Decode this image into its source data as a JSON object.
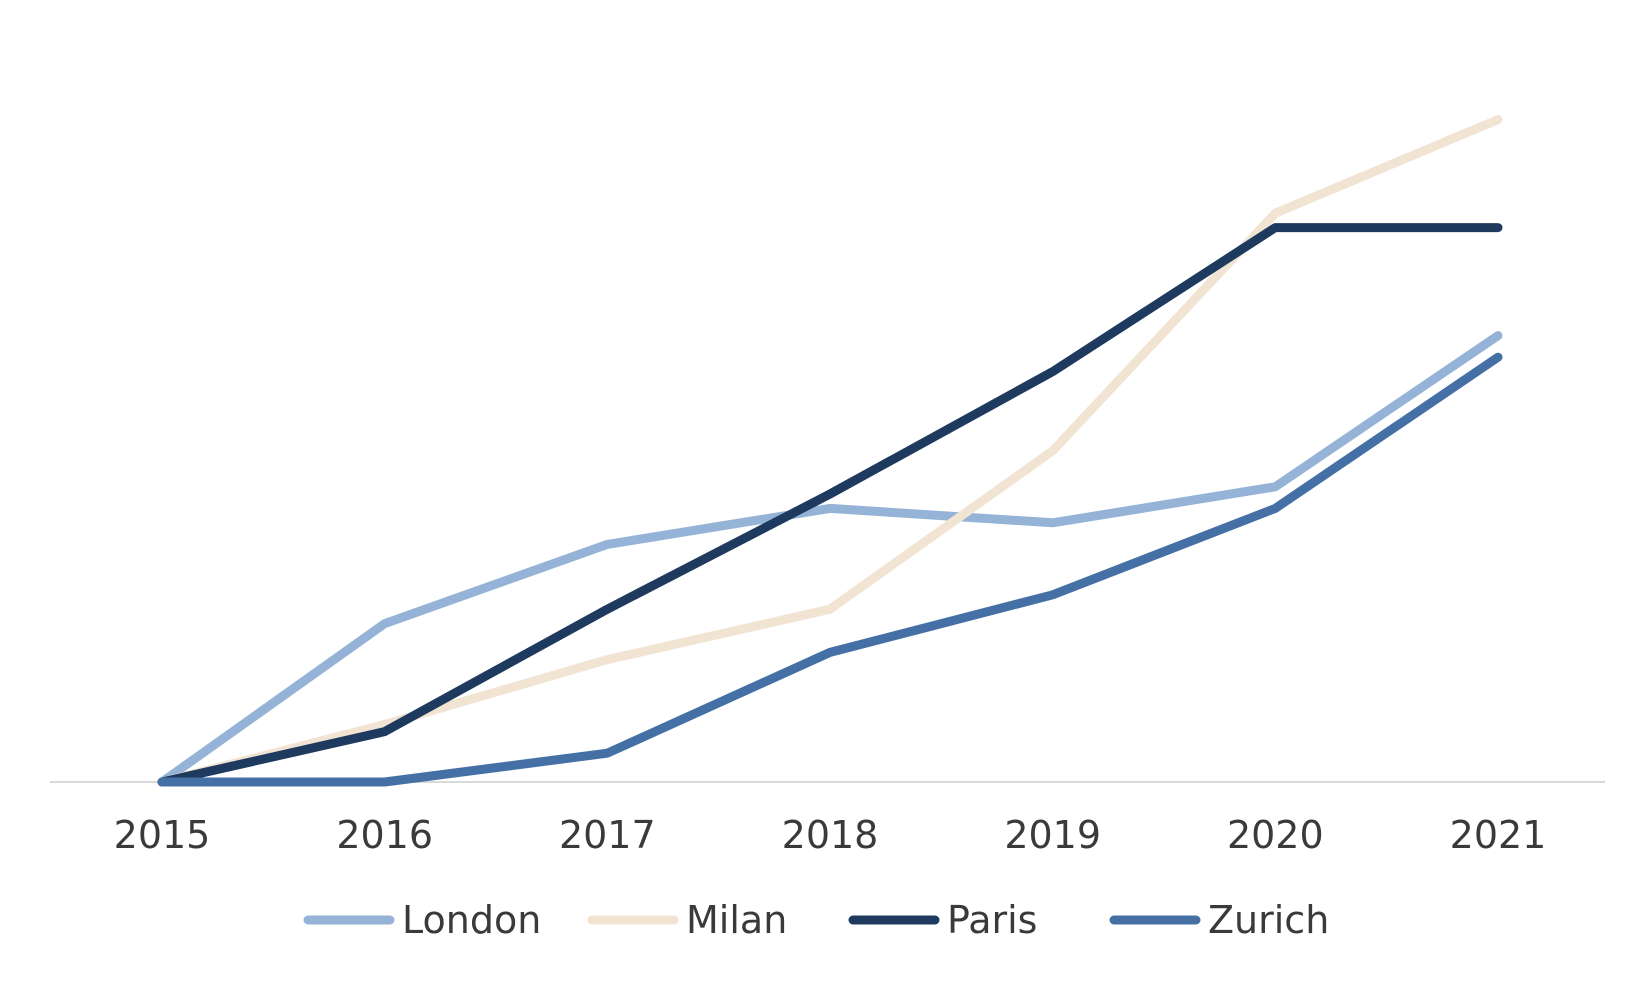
{
  "chart_data": {
    "type": "line",
    "categories": [
      "2015",
      "2016",
      "2017",
      "2018",
      "2019",
      "2020",
      "2021"
    ],
    "series": [
      {
        "name": "London",
        "color": "#95b3d7",
        "values": [
          0,
          22,
          33,
          38,
          36,
          41,
          62
        ]
      },
      {
        "name": "Milan",
        "color": "#f2e4d3",
        "values": [
          0,
          8,
          17,
          24,
          46,
          79,
          92
        ]
      },
      {
        "name": "Paris",
        "color": "#1f3a5f",
        "values": [
          0,
          7,
          24,
          40,
          57,
          77,
          77
        ]
      },
      {
        "name": "Zurich",
        "color": "#4470a5",
        "values": [
          0,
          0,
          4,
          18,
          26,
          38,
          59
        ]
      }
    ],
    "ylim": [
      0,
      100
    ],
    "grid": false,
    "legend_position": "bottom",
    "axis_color": "#d9d9d9"
  }
}
